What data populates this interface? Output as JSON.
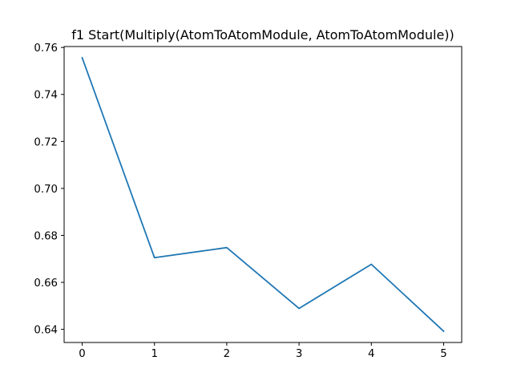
{
  "chart_data": {
    "type": "line",
    "title": "f1 Start(Multiply(AtomToAtomModule, AtomToAtomModule))",
    "xlabel": "",
    "ylabel": "",
    "x": [
      0,
      1,
      2,
      3,
      4,
      5
    ],
    "series": [
      {
        "values": [
          0.7556,
          0.6705,
          0.6748,
          0.6489,
          0.6677,
          0.6392
        ],
        "color": "#1f77b4"
      }
    ],
    "xlim": [
      -0.25,
      5.25
    ],
    "ylim": [
      0.6344,
      0.7604
    ],
    "xticks": [
      0,
      1,
      2,
      3,
      4,
      5
    ],
    "xtick_labels": [
      "0",
      "1",
      "2",
      "3",
      "4",
      "5"
    ],
    "yticks": [
      0.64,
      0.66,
      0.68,
      0.7,
      0.72,
      0.74,
      0.76
    ],
    "ytick_labels": [
      "0.64",
      "0.66",
      "0.68",
      "0.70",
      "0.72",
      "0.74",
      "0.76"
    ],
    "grid": false,
    "legend": "none"
  }
}
